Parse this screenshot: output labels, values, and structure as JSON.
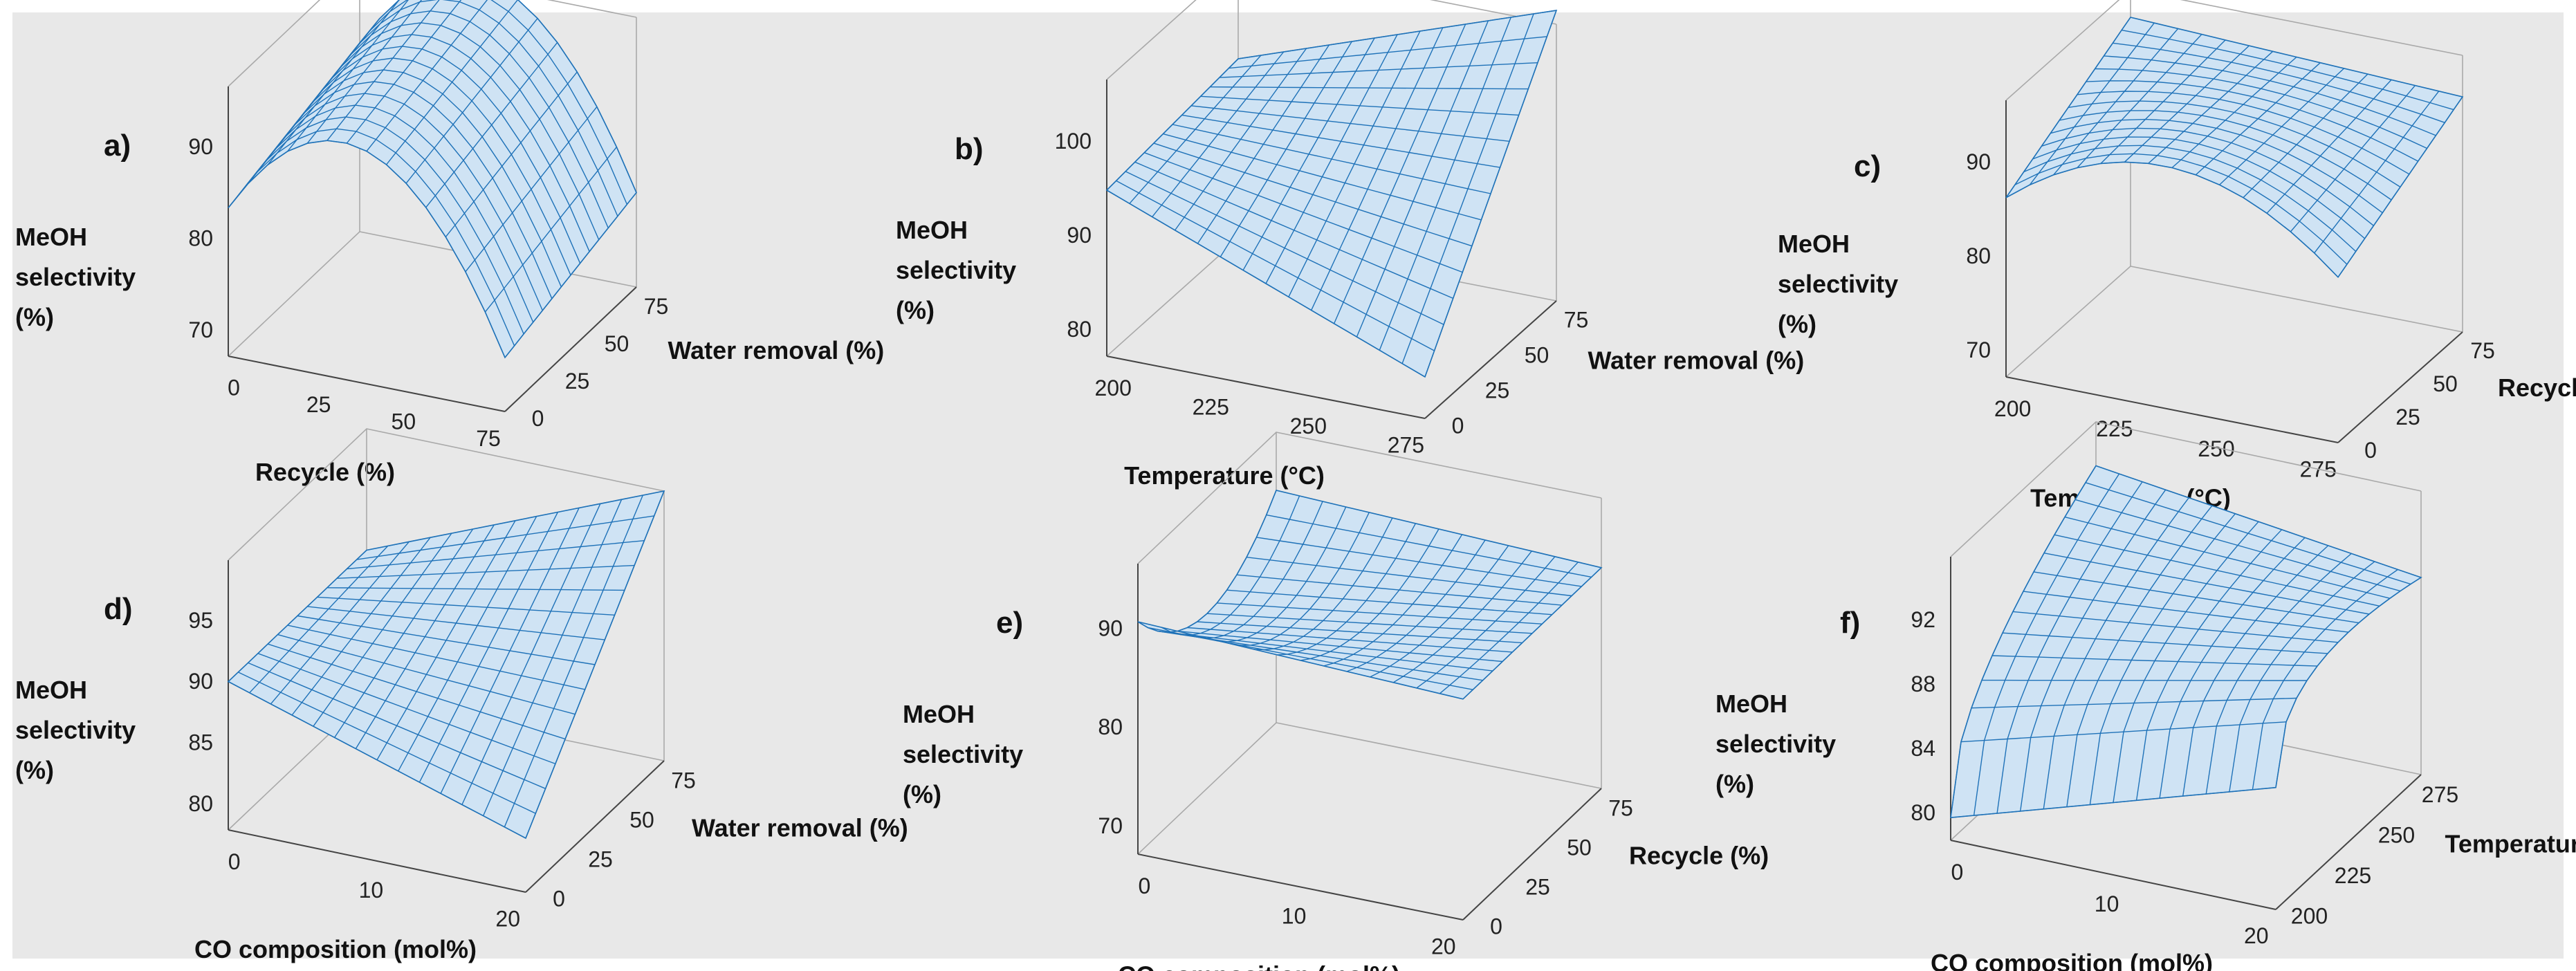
{
  "figure_background": "#e8e8e8",
  "surface_color": "#1f72b8",
  "surface_fill": "#cfe3f4",
  "chart_data": [
    {
      "type": "surface3d",
      "panel": "a)",
      "zlabel": [
        "MeOH",
        "selectivity",
        "(%)"
      ],
      "z_ticks": [
        "90",
        "80",
        "70"
      ],
      "xlabel": "Recycle (%)",
      "x_ticks": [
        "0",
        "25",
        "50",
        "75"
      ],
      "ylabel": "Water removal (%)",
      "y_ticks": [
        "0",
        "25",
        "50",
        "75"
      ]
    },
    {
      "type": "surface3d",
      "panel": "b)",
      "zlabel": [
        "MeOH",
        "selectivity",
        "(%)"
      ],
      "z_ticks": [
        "100",
        "90",
        "80"
      ],
      "xlabel": "Temperature (°C)",
      "x_ticks": [
        "200",
        "225",
        "250",
        "275"
      ],
      "ylabel": "Water removal (%)",
      "y_ticks": [
        "0",
        "25",
        "50",
        "75"
      ]
    },
    {
      "type": "surface3d",
      "panel": "c)",
      "zlabel": [
        "MeOH",
        "selectivity",
        "(%)"
      ],
      "z_ticks": [
        "90",
        "80",
        "70"
      ],
      "xlabel": "Temperature (°C)",
      "x_ticks": [
        "200",
        "225",
        "250",
        "275"
      ],
      "ylabel": "Recycle (%)",
      "y_ticks": [
        "0",
        "25",
        "50",
        "75"
      ]
    },
    {
      "type": "surface3d",
      "panel": "d)",
      "zlabel": [
        "MeOH",
        "selectivity",
        "(%)"
      ],
      "z_ticks": [
        "95",
        "90",
        "85",
        "80"
      ],
      "xlabel": "CO composition (mol%)",
      "x_ticks": [
        "0",
        "10",
        "20"
      ],
      "ylabel": "Water removal (%)",
      "y_ticks": [
        "0",
        "25",
        "50",
        "75"
      ]
    },
    {
      "type": "surface3d",
      "panel": "e)",
      "zlabel": [
        "MeOH",
        "selectivity",
        "(%)"
      ],
      "z_ticks": [
        "90",
        "80",
        "70"
      ],
      "xlabel": "CO composition (mol%)",
      "x_ticks": [
        "0",
        "10",
        "20"
      ],
      "ylabel": "Recycle (%)",
      "y_ticks": [
        "0",
        "25",
        "50",
        "75"
      ]
    },
    {
      "type": "surface3d",
      "panel": "f)",
      "zlabel": [
        "MeOH",
        "selectivity",
        "(%)"
      ],
      "z_ticks": [
        "92",
        "88",
        "84",
        "80"
      ],
      "xlabel": "CO composition (mol%)",
      "x_ticks": [
        "0",
        "10",
        "20"
      ],
      "ylabel": "Temperature (°C)",
      "y_ticks": [
        "200",
        "225",
        "250",
        "275"
      ]
    }
  ]
}
